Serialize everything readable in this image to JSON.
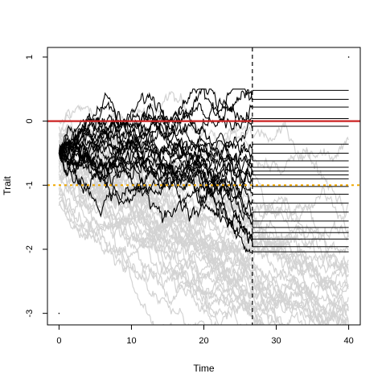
{
  "chart_data": {
    "type": "line",
    "title": "",
    "xlabel": "Time",
    "ylabel": "Trait",
    "xlim": [
      -1.6,
      41.6
    ],
    "ylim": [
      -3.18,
      1.15
    ],
    "x_ticks": [
      0,
      10,
      20,
      30,
      40
    ],
    "x_tick_labels": [
      "0",
      "10",
      "20",
      "30",
      "40"
    ],
    "y_ticks": [
      -3,
      -2,
      -1,
      0,
      1
    ],
    "y_tick_labels": [
      "-3",
      "-2",
      "-1",
      "0",
      "1"
    ],
    "grid": false,
    "legend": "none",
    "reference_lines": [
      {
        "orientation": "horizontal",
        "y": 0,
        "color": "#cc2222",
        "style": "solid"
      },
      {
        "orientation": "horizontal",
        "y": -1,
        "color": "#f0a800",
        "style": "dotted"
      },
      {
        "orientation": "vertical",
        "x": 26.7,
        "color": "#000000",
        "style": "dashed"
      }
    ],
    "background_series": {
      "description": "many simulated random-walk trajectories",
      "color": "#d3d3d3",
      "x_range": [
        0,
        40
      ],
      "approx_count": 40,
      "y_envelope": [
        -3.2,
        0.75
      ]
    },
    "highlighted_series": {
      "color": "#000000",
      "x_range": [
        0,
        26.7
      ],
      "approx_count": 12,
      "start_y": -0.5,
      "y_envelope": [
        -2.05,
        0.5
      ],
      "end_values": [
        0.48,
        0.34,
        0.22,
        0.04,
        -0.08,
        -0.36,
        -0.5,
        -0.62,
        -0.72,
        -0.78,
        -0.84,
        -0.9,
        -1.02,
        -1.14,
        -1.28,
        -1.42,
        -1.56,
        -1.66,
        -1.74,
        -1.84,
        -1.96,
        -2.04
      ],
      "extension_to_x": 40,
      "extension_style": "flat horizontal lines"
    },
    "outlier_points": [
      {
        "x": 0,
        "y": -3.0
      },
      {
        "x": 40,
        "y": 1.0
      }
    ]
  }
}
